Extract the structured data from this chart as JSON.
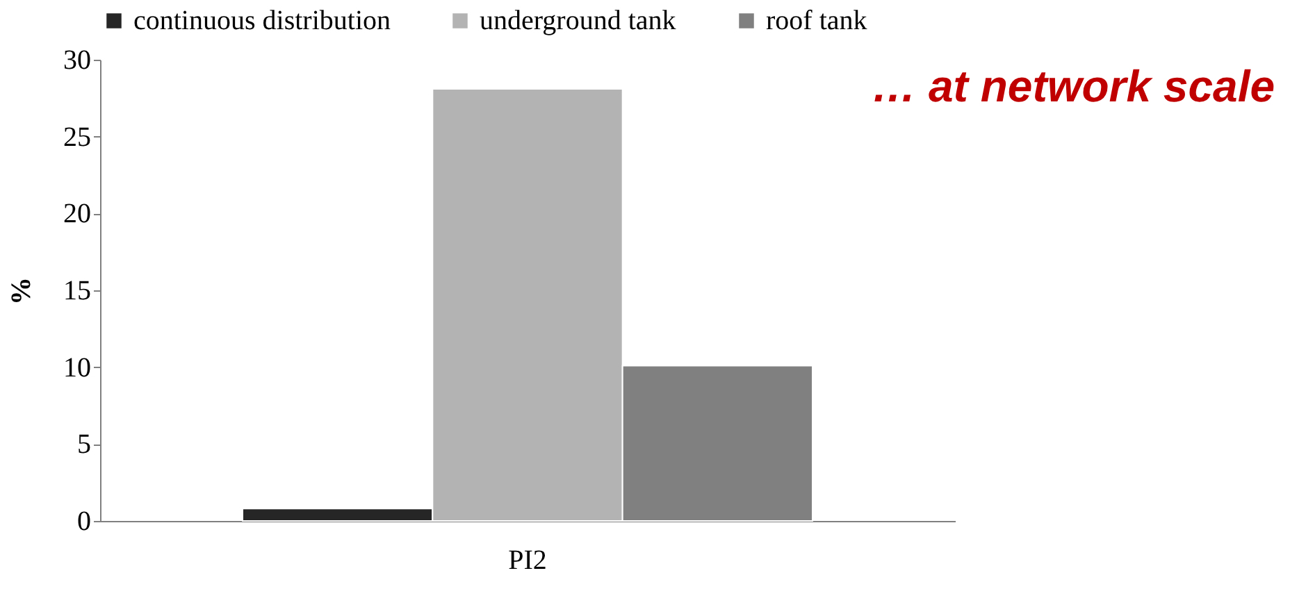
{
  "chart_data": {
    "type": "bar",
    "categories": [
      "PI2"
    ],
    "series": [
      {
        "name": "continuous distribution",
        "color": "#262626",
        "values": [
          0.8
        ]
      },
      {
        "name": "underground tank",
        "color": "#b3b3b3",
        "values": [
          28.1
        ]
      },
      {
        "name": "roof tank",
        "color": "#808080",
        "values": [
          10.1
        ]
      }
    ],
    "ylabel": "%",
    "ylim": [
      0,
      30
    ],
    "yticks": [
      0,
      5,
      10,
      15,
      20,
      25,
      30
    ],
    "grid": false,
    "legend": "top",
    "annotations": [
      "… at network scale"
    ]
  }
}
